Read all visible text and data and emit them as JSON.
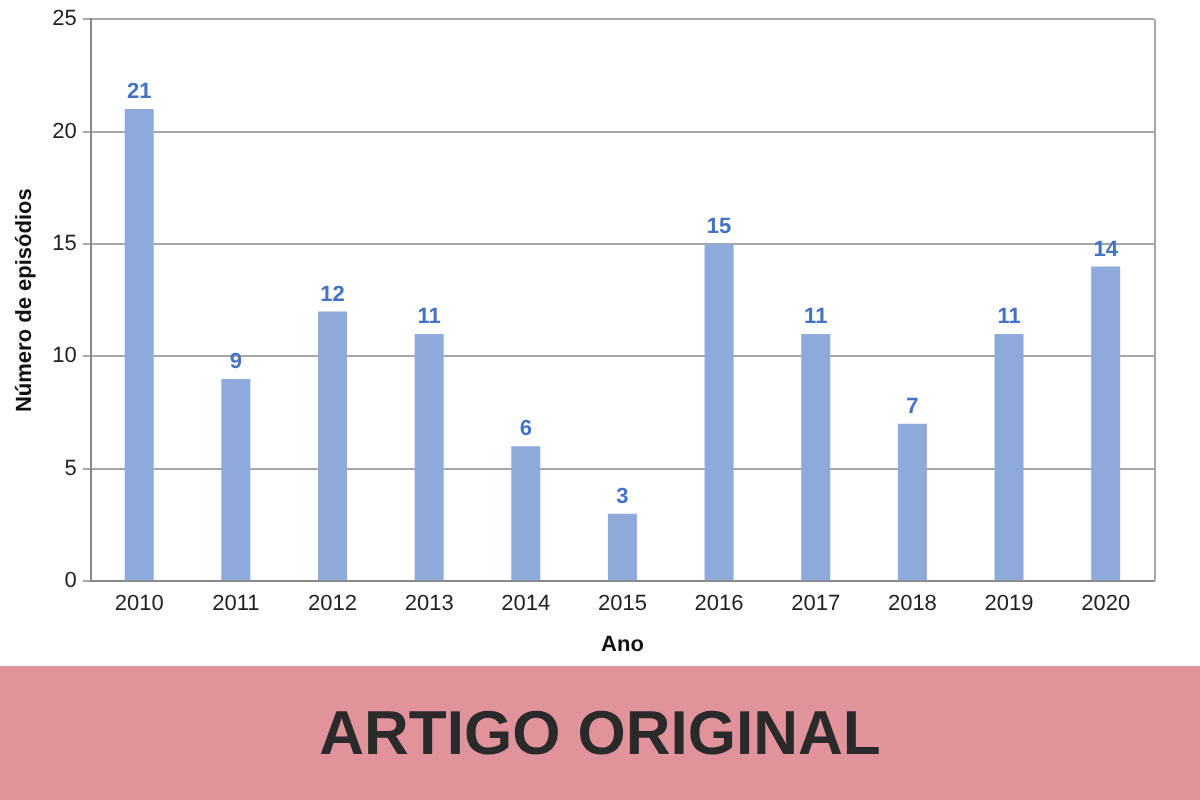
{
  "chart_data": {
    "type": "bar",
    "xlabel": "Ano",
    "ylabel": "Número de episódios",
    "categories": [
      "2010",
      "2011",
      "2012",
      "2013",
      "2014",
      "2015",
      "2016",
      "2017",
      "2018",
      "2019",
      "2020"
    ],
    "values": [
      21,
      9,
      12,
      11,
      6,
      3,
      15,
      11,
      7,
      11,
      14
    ],
    "color": "#8eaadb",
    "ylim": [
      0,
      25
    ],
    "yticks": [
      0,
      5,
      10,
      15,
      20,
      25
    ],
    "grid": "y",
    "data_labels": true,
    "annotations": [
      "ARTIGO ORIGINAL"
    ]
  }
}
